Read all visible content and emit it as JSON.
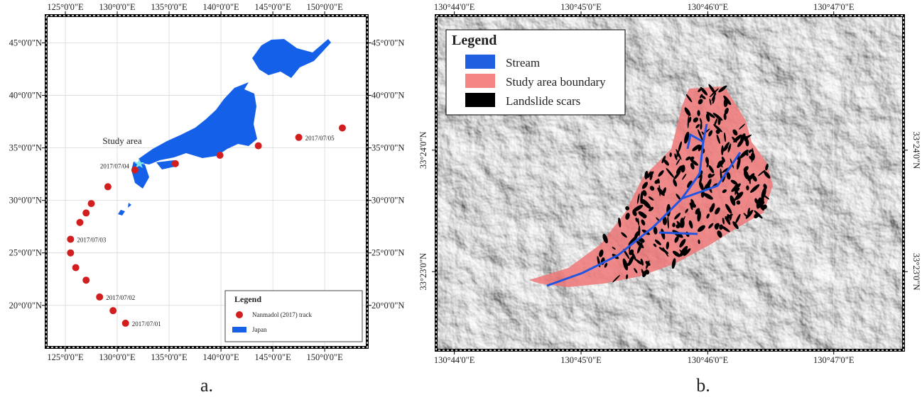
{
  "panel_a": {
    "caption": "a.",
    "xlim": [
      123.15,
      154.1
    ],
    "ylim": [
      16.0,
      47.6
    ],
    "xticks": [
      {
        "value": 125,
        "label": "125°0'0\"E"
      },
      {
        "value": 130,
        "label": "130°0'0\"E"
      },
      {
        "value": 135,
        "label": "135°0'0\"E"
      },
      {
        "value": 140,
        "label": "140°0'0\"E"
      },
      {
        "value": 145,
        "label": "145°0'0\"E"
      },
      {
        "value": 150,
        "label": "150°0'0\"E"
      }
    ],
    "yticks": [
      {
        "value": 20,
        "label": "20°0'0\"N"
      },
      {
        "value": 25,
        "label": "25°0'0\"N"
      },
      {
        "value": 30,
        "label": "30°0'0\"N"
      },
      {
        "value": 35,
        "label": "35°0'0\"N"
      },
      {
        "value": 40,
        "label": "40°0'0\"N"
      },
      {
        "value": 45,
        "label": "45°0'0\"N"
      }
    ],
    "annotation": "Study area",
    "legend": {
      "title": "Legend",
      "items": [
        "Nanmadol (2017) track",
        "Japan"
      ]
    },
    "track": [
      {
        "lon": 130.8,
        "lat": 18.3,
        "label": "2017/07/01"
      },
      {
        "lon": 129.6,
        "lat": 19.5
      },
      {
        "lon": 128.3,
        "lat": 20.8,
        "label": "2017/07/02"
      },
      {
        "lon": 127.0,
        "lat": 22.4
      },
      {
        "lon": 126.0,
        "lat": 23.6
      },
      {
        "lon": 125.5,
        "lat": 25.0
      },
      {
        "lon": 125.5,
        "lat": 26.3,
        "label": "2017/07/03"
      },
      {
        "lon": 126.4,
        "lat": 27.9
      },
      {
        "lon": 127.0,
        "lat": 28.8
      },
      {
        "lon": 127.5,
        "lat": 29.7
      },
      {
        "lon": 129.1,
        "lat": 31.3
      },
      {
        "lon": 131.7,
        "lat": 32.9,
        "label": "2017/07/04"
      },
      {
        "lon": 135.6,
        "lat": 33.5
      },
      {
        "lon": 139.9,
        "lat": 34.3
      },
      {
        "lon": 143.6,
        "lat": 35.2
      },
      {
        "lon": 147.5,
        "lat": 36.0,
        "label": "2017/07/05"
      },
      {
        "lon": 151.7,
        "lat": 36.9
      }
    ]
  },
  "panel_b": {
    "caption": "b.",
    "xlim": [
      130.7309,
      130.7925
    ],
    "ylim": [
      33.3725,
      33.4185
    ],
    "xticks": [
      {
        "value": 130.7333,
        "label": "130°44'0\"E"
      },
      {
        "value": 130.75,
        "label": "130°45'0\"E"
      },
      {
        "value": 130.7667,
        "label": "130°46'0\"E"
      },
      {
        "value": 130.7833,
        "label": "130°47'0\"E"
      }
    ],
    "yticks": [
      {
        "value": 33.3833,
        "label": "33°23'0\"N"
      },
      {
        "value": 33.4,
        "label": "33°24'0\"N"
      }
    ],
    "legend": {
      "title": "Legend",
      "items": [
        "Stream",
        "Study area boundary",
        "Landslide scars"
      ]
    }
  }
}
